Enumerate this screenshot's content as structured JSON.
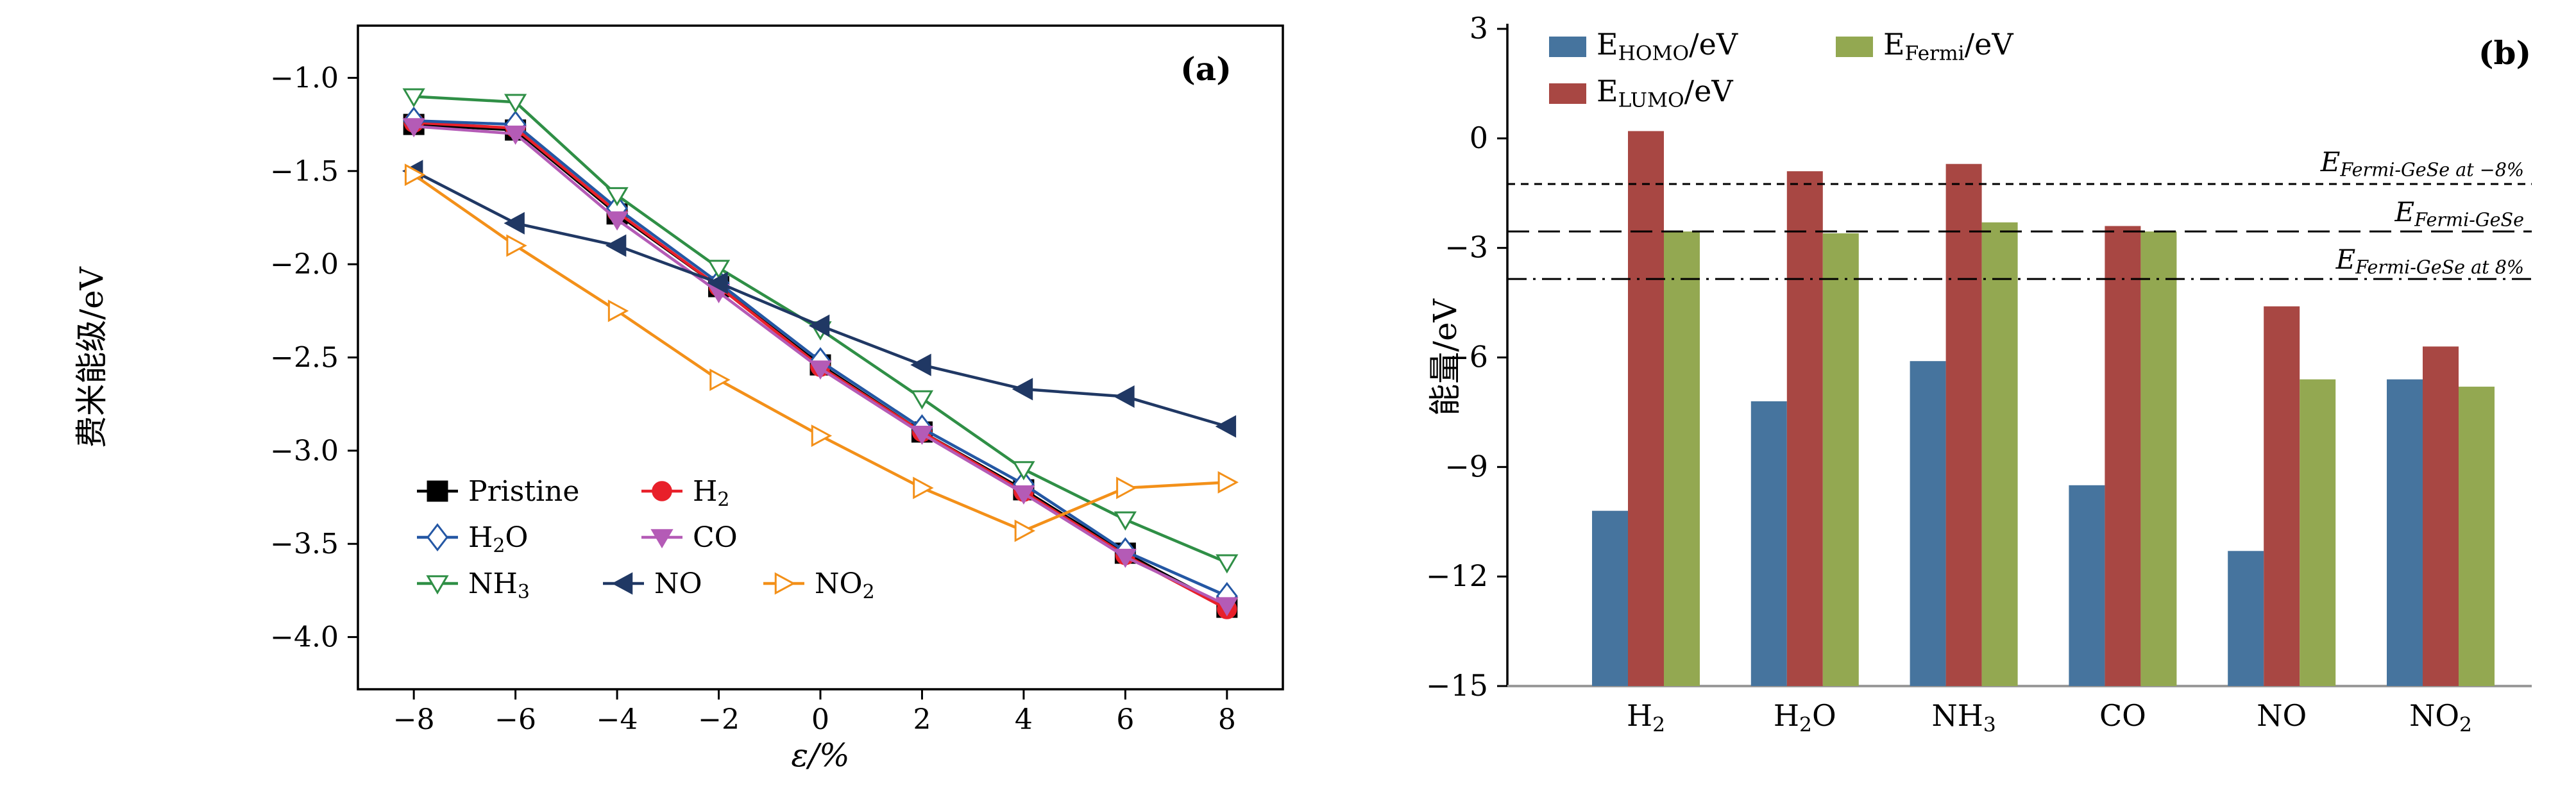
{
  "figure": {
    "background": "#ffffff",
    "panel_a_label": "(a)",
    "panel_b_label": "(b)"
  },
  "chart_data": [
    {
      "type": "line",
      "panel_label": "(a)",
      "xlabel": "ε/%",
      "ylabel": "费米能级/eV",
      "xlim": [
        -9.1,
        9.1
      ],
      "ylim": [
        -4.28,
        -0.72
      ],
      "xticks": [
        -8,
        -6,
        -4,
        -2,
        0,
        2,
        4,
        6,
        8
      ],
      "yticks": [
        -4.0,
        -3.5,
        -3.0,
        -2.5,
        -2.0,
        -1.5,
        -1.0
      ],
      "grid": false,
      "x": [
        -8,
        -6,
        -4,
        -2,
        0,
        2,
        4,
        6,
        8
      ],
      "series": [
        {
          "name": "Pristine",
          "label": "Pristine",
          "color": "#000000",
          "marker": "square",
          "filled": true,
          "values": [
            -1.25,
            -1.28,
            -1.73,
            -2.12,
            -2.54,
            -2.9,
            -3.21,
            -3.55,
            -3.84
          ]
        },
        {
          "name": "H2",
          "label": "H[2]",
          "color": "#e8202a",
          "marker": "circle",
          "filled": true,
          "values": [
            -1.24,
            -1.27,
            -1.72,
            -2.12,
            -2.55,
            -2.9,
            -3.22,
            -3.56,
            -3.85
          ]
        },
        {
          "name": "H2O",
          "label": "H[2]O",
          "color": "#2457a4",
          "marker": "diamond",
          "filled": false,
          "values": [
            -1.23,
            -1.25,
            -1.7,
            -2.1,
            -2.52,
            -2.88,
            -3.18,
            -3.54,
            -3.78
          ]
        },
        {
          "name": "CO",
          "label": "CO",
          "color": "#b45bb6",
          "marker": "triangle-down",
          "filled": true,
          "values": [
            -1.26,
            -1.3,
            -1.76,
            -2.15,
            -2.56,
            -2.91,
            -3.23,
            -3.57,
            -3.83
          ]
        },
        {
          "name": "NH3",
          "label": "NH[3]",
          "color": "#2f8f46",
          "marker": "triangle-down",
          "filled": false,
          "values": [
            -1.1,
            -1.13,
            -1.63,
            -2.02,
            -2.35,
            -2.72,
            -3.1,
            -3.37,
            -3.6
          ]
        },
        {
          "name": "NO",
          "label": "NO",
          "color": "#203864",
          "marker": "triangle-left",
          "filled": true,
          "values": [
            -1.5,
            -1.78,
            -1.9,
            -2.1,
            -2.33,
            -2.54,
            -2.67,
            -2.71,
            -2.87
          ]
        },
        {
          "name": "NO2",
          "label": "NO[2]",
          "color": "#f39019",
          "marker": "triangle-right",
          "filled": false,
          "values": [
            -1.52,
            -1.9,
            -2.25,
            -2.62,
            -2.92,
            -3.2,
            -3.43,
            -3.2,
            -3.17
          ]
        }
      ],
      "legend_rows": [
        [
          "Pristine",
          "H2"
        ],
        [
          "H2O",
          "CO"
        ],
        [
          "NH3",
          "NO",
          "NO2"
        ]
      ]
    },
    {
      "type": "bar",
      "panel_label": "(b)",
      "xlabel": "",
      "ylabel": "能量/eV",
      "ylim": [
        -15,
        3
      ],
      "yticks": [
        3,
        0,
        -3,
        -6,
        -9,
        -12,
        -15
      ],
      "grid": false,
      "baseline": -15,
      "categories": [
        "H[2]",
        "H[2]O",
        "NH[3]",
        "CO",
        "NO",
        "NO[2]"
      ],
      "series": [
        {
          "name": "E_HOMO",
          "label": "E[HOMO]/eV",
          "color": "#46749e",
          "values": [
            -10.2,
            -7.2,
            -6.1,
            -9.5,
            -11.3,
            -6.6
          ]
        },
        {
          "name": "E_LUMO",
          "label": "E[LUMO]/eV",
          "color": "#a84743",
          "values": [
            0.2,
            -0.9,
            -0.7,
            -2.4,
            -4.6,
            -5.7
          ]
        },
        {
          "name": "E_Fermi",
          "label": "E[Fermi]/eV",
          "color": "#93a851",
          "values": [
            -2.55,
            -2.6,
            -2.3,
            -2.55,
            -6.6,
            -6.8
          ]
        }
      ],
      "reference_lines": [
        {
          "label": "E[Fermi-GeSe at −8%]",
          "value": -1.25,
          "dash": "short"
        },
        {
          "label": "E[Fermi-GeSe]",
          "value": -2.55,
          "dash": "long"
        },
        {
          "label": "E[Fermi-GeSe at 8%]",
          "value": -3.85,
          "dash": "dashdot"
        }
      ]
    }
  ]
}
